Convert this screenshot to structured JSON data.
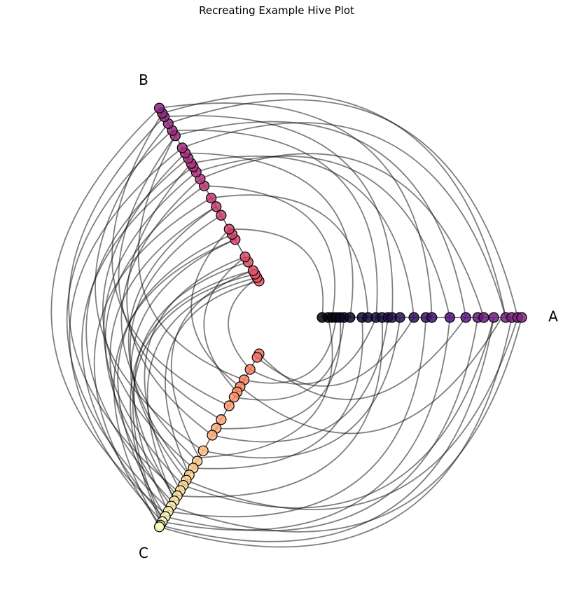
{
  "chart_data": {
    "type": "hive",
    "title": "Recreating Example Hive Plot",
    "grid": false,
    "axes": [
      {
        "name": "A",
        "angle_deg": 0,
        "colormap": "magma (dark end)",
        "node_positions": [
          0.0,
          0.03,
          0.05,
          0.07,
          0.09,
          0.11,
          0.14,
          0.2,
          0.23,
          0.27,
          0.3,
          0.33,
          0.35,
          0.39,
          0.46,
          0.52,
          0.55,
          0.64,
          0.72,
          0.78,
          0.81,
          0.86,
          0.92,
          0.95,
          0.98,
          1.0
        ]
      },
      {
        "name": "B",
        "angle_deg": 120,
        "colormap": "magma (red/pink range)",
        "node_positions": [
          0.0,
          0.02,
          0.04,
          0.06,
          0.11,
          0.14,
          0.24,
          0.27,
          0.3,
          0.38,
          0.43,
          0.48,
          0.55,
          0.59,
          0.63,
          0.66,
          0.68,
          0.71,
          0.74,
          0.77,
          0.84,
          0.87,
          0.91,
          0.95,
          0.97,
          1.0
        ]
      },
      {
        "name": "C",
        "angle_deg": 240,
        "colormap": "magma (orange/yellow range)",
        "node_positions": [
          0.0,
          0.02,
          0.09,
          0.15,
          0.19,
          0.22,
          0.25,
          0.3,
          0.38,
          0.43,
          0.47,
          0.56,
          0.62,
          0.66,
          0.7,
          0.73,
          0.76,
          0.79,
          0.82,
          0.85,
          0.88,
          0.91,
          0.94,
          0.97,
          0.99,
          1.0
        ]
      }
    ],
    "edges": [
      [
        "A",
        0.0,
        "B",
        0.3
      ],
      [
        "A",
        0.05,
        "B",
        0.55
      ],
      [
        "A",
        0.09,
        "C",
        0.43
      ],
      [
        "A",
        0.14,
        "B",
        0.74
      ],
      [
        "A",
        0.2,
        "C",
        0.66
      ],
      [
        "A",
        0.27,
        "B",
        0.87
      ],
      [
        "A",
        0.3,
        "C",
        0.82
      ],
      [
        "A",
        0.35,
        "B",
        0.95
      ],
      [
        "A",
        0.39,
        "C",
        0.56
      ],
      [
        "A",
        0.46,
        "B",
        0.68
      ],
      [
        "A",
        0.52,
        "C",
        0.91
      ],
      [
        "A",
        0.55,
        "B",
        1.0
      ],
      [
        "A",
        0.64,
        "C",
        0.97
      ],
      [
        "A",
        0.72,
        "B",
        0.84
      ],
      [
        "A",
        0.78,
        "C",
        0.94
      ],
      [
        "A",
        0.81,
        "B",
        0.59
      ],
      [
        "A",
        0.86,
        "C",
        0.76
      ],
      [
        "A",
        0.92,
        "B",
        0.97
      ],
      [
        "A",
        0.95,
        "C",
        1.0
      ],
      [
        "A",
        0.98,
        "B",
        0.91
      ],
      [
        "A",
        1.0,
        "C",
        0.88
      ],
      [
        "A",
        0.98,
        "C",
        0.73
      ],
      [
        "A",
        0.92,
        "B",
        0.77
      ],
      [
        "A",
        0.86,
        "C",
        0.99
      ],
      [
        "A",
        0.64,
        "B",
        0.63
      ],
      [
        "A",
        0.33,
        "C",
        0.47
      ],
      [
        "A",
        0.11,
        "C",
        0.25
      ],
      [
        "A",
        0.23,
        "B",
        0.48
      ],
      [
        "B",
        0.0,
        "C",
        0.7
      ],
      [
        "B",
        0.02,
        "C",
        0.85
      ],
      [
        "B",
        0.04,
        "C",
        0.97
      ],
      [
        "B",
        0.06,
        "C",
        0.6
      ],
      [
        "B",
        0.11,
        "C",
        0.91
      ],
      [
        "B",
        0.14,
        "C",
        0.79
      ],
      [
        "B",
        0.24,
        "C",
        1.0
      ],
      [
        "B",
        0.27,
        "C",
        0.94
      ],
      [
        "B",
        0.38,
        "C",
        0.73
      ],
      [
        "B",
        0.43,
        "C",
        0.88
      ],
      [
        "B",
        0.48,
        "C",
        0.99
      ],
      [
        "B",
        0.55,
        "C",
        0.82
      ],
      [
        "B",
        0.59,
        "C",
        0.62
      ],
      [
        "B",
        0.63,
        "C",
        0.76
      ],
      [
        "B",
        0.66,
        "C",
        0.95
      ],
      [
        "B",
        0.68,
        "C",
        0.47
      ],
      [
        "B",
        0.71,
        "C",
        0.86
      ],
      [
        "B",
        0.74,
        "C",
        0.66
      ],
      [
        "B",
        0.77,
        "C",
        0.97
      ],
      [
        "B",
        0.84,
        "C",
        0.38
      ],
      [
        "B",
        0.87,
        "C",
        0.9
      ],
      [
        "B",
        0.91,
        "C",
        0.56
      ],
      [
        "B",
        0.95,
        "C",
        0.8
      ],
      [
        "B",
        0.97,
        "C",
        0.3
      ],
      [
        "B",
        1.0,
        "C",
        0.93
      ],
      [
        "B",
        0.3,
        "C",
        0.19
      ],
      [
        "B",
        0.14,
        "C",
        0.22
      ],
      [
        "B",
        0.84,
        "C",
        0.15
      ],
      [
        "B",
        0.06,
        "C",
        0.98
      ],
      [
        "B",
        0.24,
        "C",
        0.84
      ],
      [
        "B",
        0.43,
        "C",
        0.7
      ],
      [
        "B",
        0.02,
        "C",
        0.09
      ],
      [
        "C",
        0.0,
        "A",
        0.72
      ],
      [
        "C",
        0.02,
        "A",
        0.46
      ],
      [
        "C",
        0.09,
        "A",
        0.27
      ],
      [
        "C",
        0.15,
        "A",
        0.07
      ],
      [
        "C",
        0.19,
        "A",
        0.9
      ],
      [
        "C",
        0.6,
        "A",
        0.03
      ]
    ]
  }
}
